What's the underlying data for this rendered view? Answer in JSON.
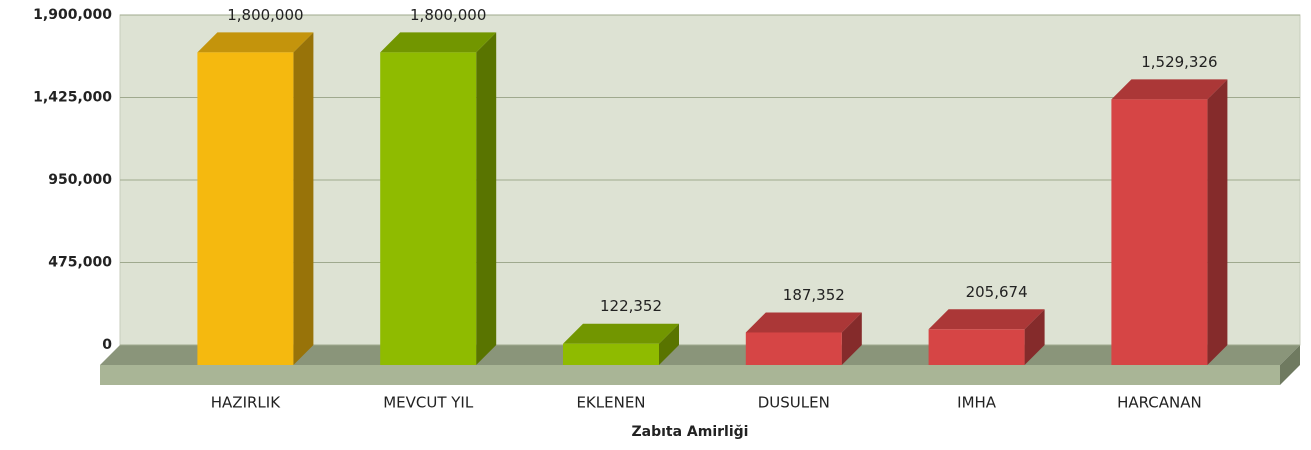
{
  "chart_data": {
    "type": "bar",
    "x_label": "Zabıta Amirliği",
    "categories": [
      "HAZIRLIK",
      "MEVCUT YIL",
      "EKLENEN",
      "DUSULEN",
      "IMHA",
      "HARCANAN"
    ],
    "values": [
      1800000,
      1800000,
      122352,
      187352,
      205674,
      1529326
    ],
    "value_labels": [
      "1,800,000",
      "1,800,000",
      "122,352",
      "187,352",
      "205,674",
      "1,529,326"
    ],
    "colors": [
      "#f5b90f",
      "#8fbb00",
      "#8fbb00",
      "#d64545",
      "#d64545",
      "#d64545"
    ],
    "ylim": [
      0,
      1900000
    ],
    "yticks": [
      0,
      {
        "value": 475000,
        "label": "475,000"
      },
      {
        "value": 950000,
        "label": "950,000"
      },
      {
        "value": 1425000,
        "label": "1,425,000"
      },
      {
        "value": 1900000,
        "label": "1,900,000"
      }
    ],
    "grid": true
  }
}
